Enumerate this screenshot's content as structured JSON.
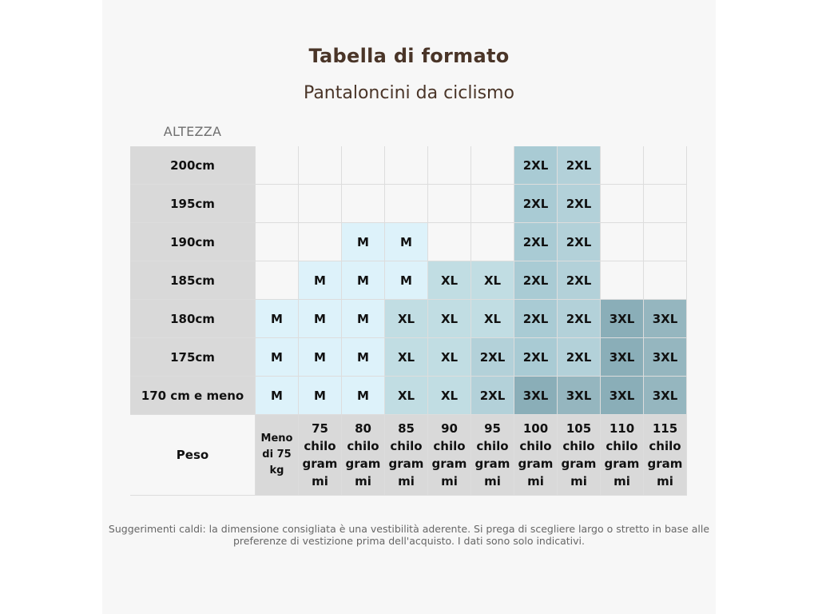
{
  "header": {
    "title": "Tabella di formato",
    "subtitle": "Pantaloncini da ciclismo"
  },
  "axis": {
    "height_label": "ALTEZZA",
    "weight_label": "Peso"
  },
  "heights": [
    "200cm",
    "195cm",
    "190cm",
    "185cm",
    "180cm",
    "175cm",
    "170 cm e meno"
  ],
  "weights": [
    "Meno di 75 kg",
    "75 chilo grammi",
    "80 chilo grammi",
    "85 chilo grammi",
    "90 chilo grammi",
    "95 chilo grammi",
    "100 chilo grammi",
    "105 chilo grammi",
    "110 chilo grammi",
    "115 chilo grammi"
  ],
  "sizes": [
    [
      "",
      "",
      "",
      "",
      "",
      "",
      "2XL",
      "2XL",
      "",
      ""
    ],
    [
      "",
      "",
      "",
      "",
      "",
      "",
      "2XL",
      "2XL",
      "",
      ""
    ],
    [
      "",
      "",
      "M",
      "M",
      "",
      "",
      "2XL",
      "2XL",
      "",
      ""
    ],
    [
      "",
      "M",
      "M",
      "M",
      "XL",
      "XL",
      "2XL",
      "2XL",
      "",
      ""
    ],
    [
      "M",
      "M",
      "M",
      "XL",
      "XL",
      "XL",
      "2XL",
      "2XL",
      "3XL",
      "3XL"
    ],
    [
      "M",
      "M",
      "M",
      "XL",
      "XL",
      "2XL",
      "2XL",
      "2XL",
      "3XL",
      "3XL"
    ],
    [
      "M",
      "M",
      "M",
      "XL",
      "XL",
      "2XL",
      "3XL",
      "3XL",
      "3XL",
      "3XL"
    ]
  ],
  "colors": {
    "title": "#4a3528",
    "M": "#ddf2fa",
    "XL": "#c1dde3",
    "2XL": "#a9cbd4",
    "3XL": "#8aaeb8",
    "header_cells": "#d9d9d9"
  },
  "note": "Suggerimenti caldi: la dimensione consigliata è una vestibilità aderente. Si prega di scegliere largo o stretto in base alle preferenze di vestizione prima dell'acquisto. I dati sono solo indicativi."
}
